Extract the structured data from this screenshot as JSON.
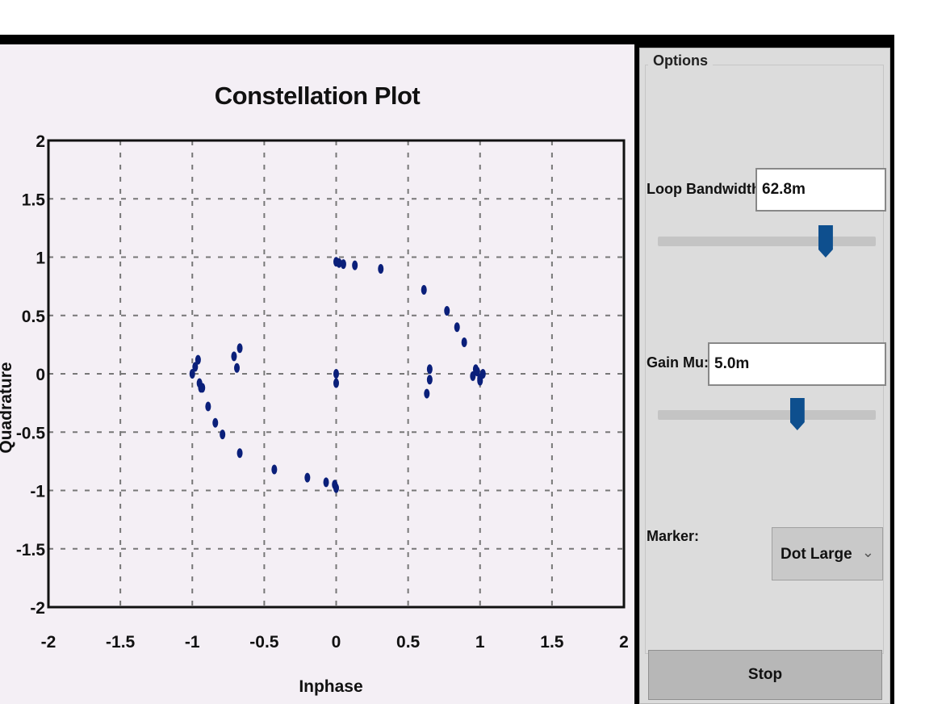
{
  "plot": {
    "title": "Constellation Plot",
    "xlabel": "Inphase",
    "ylabel": "Quadrature"
  },
  "options": {
    "legend": "Options",
    "loop_bandwidth": {
      "label": "Loop Bandwidth:",
      "value": "62.8m",
      "slider_fraction": 0.77
    },
    "gain_mu": {
      "label": "Gain Mu:",
      "value": "5.0m",
      "slider_fraction": 0.64
    },
    "marker": {
      "label": "Marker:",
      "value": "Dot Large",
      "arrow_icon": "chevron-down-icon"
    },
    "stop_label": "Stop"
  },
  "chart_data": {
    "type": "scatter",
    "title": "Constellation Plot",
    "xlabel": "Inphase",
    "ylabel": "Quadrature",
    "xlim": [
      -2,
      2
    ],
    "ylim": [
      -2,
      2
    ],
    "xticks": [
      "-2",
      "-1.5",
      "-1",
      "-0.5",
      "0",
      "0.5",
      "1",
      "1.5",
      "2"
    ],
    "yticks": [
      "2",
      "1.5",
      "1",
      "0.5",
      "0",
      "-0.5",
      "-1",
      "-1.5",
      "-2"
    ],
    "grid": true,
    "marker_color": "#0a1f7a",
    "series": [
      {
        "x": [
          0.0,
          0.02,
          0.05,
          0.13,
          0.31,
          0.61,
          0.77,
          0.84,
          0.89,
          0.97,
          1.0,
          -1.0,
          -0.98,
          -0.96,
          -0.95,
          -0.94,
          -0.71,
          -0.69,
          -0.67,
          -0.93,
          -0.89,
          -0.84,
          -0.79,
          -0.67,
          -0.43,
          -0.2,
          -0.07,
          -0.01,
          0.0,
          0.0,
          0.0,
          0.63,
          0.65,
          0.65,
          0.95,
          0.98,
          1.0,
          1.02
        ],
        "y": [
          0.96,
          0.95,
          0.94,
          0.93,
          0.9,
          0.72,
          0.54,
          0.4,
          0.27,
          0.04,
          -0.04,
          0.0,
          0.06,
          0.12,
          -0.08,
          -0.12,
          0.15,
          0.05,
          0.22,
          -0.12,
          -0.28,
          -0.42,
          -0.52,
          -0.68,
          -0.82,
          -0.89,
          -0.93,
          -0.95,
          -0.98,
          0.0,
          -0.08,
          -0.17,
          0.04,
          -0.05,
          -0.02,
          0.02,
          -0.06,
          0.0
        ]
      }
    ]
  }
}
